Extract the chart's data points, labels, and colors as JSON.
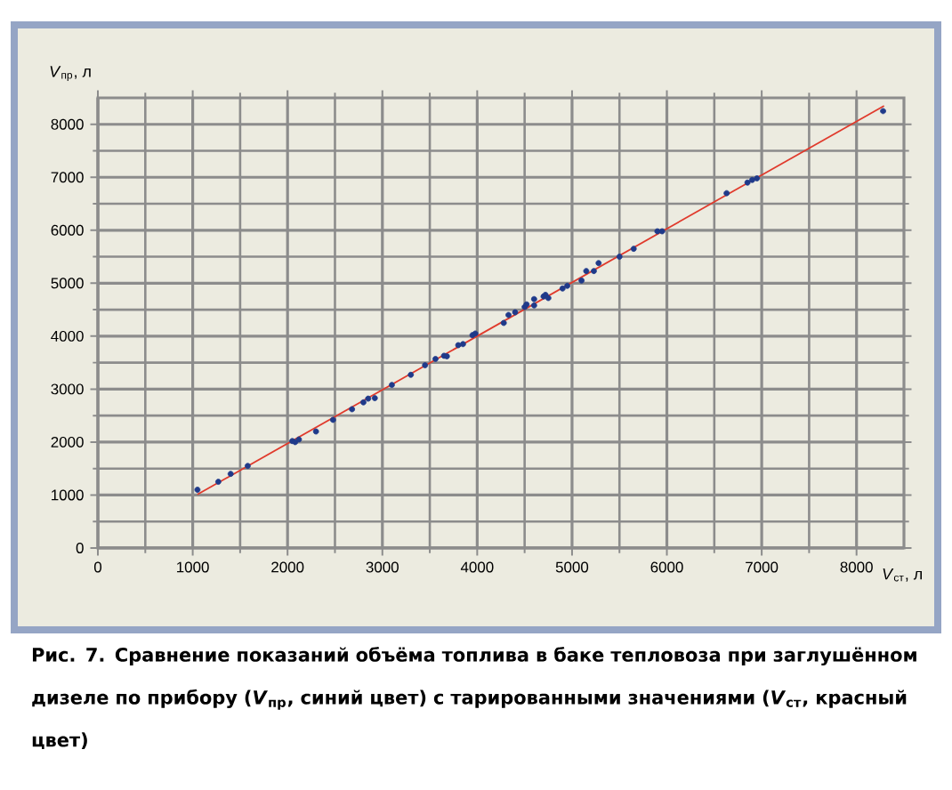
{
  "chart_data": {
    "type": "scatter",
    "xlabel": "*V*$_{ст}$, л",
    "ylabel": "*V*$_{пр}$, л",
    "xlim": [
      0,
      8500
    ],
    "ylim": [
      0,
      8500
    ],
    "xticks": [
      0,
      1000,
      2000,
      3000,
      4000,
      5000,
      6000,
      7000,
      8000
    ],
    "yticks": [
      0,
      1000,
      2000,
      3000,
      4000,
      5000,
      6000,
      7000,
      8000
    ],
    "grid": true,
    "series": [
      {
        "color": "#1f3a8a",
        "x": [
          1050,
          1270,
          1400,
          1580,
          2050,
          2080,
          2120,
          2300,
          2480,
          2680,
          2800,
          2850,
          2920,
          3100,
          3300,
          3450,
          3560,
          3650,
          3680,
          3800,
          3850,
          3950,
          3980,
          4280,
          4330,
          4400,
          4500,
          4520,
          4600,
          4600,
          4700,
          4720,
          4750,
          4900,
          4950,
          5100,
          5150,
          5230,
          5280,
          5500,
          5650,
          5900,
          5950,
          6630,
          6850,
          6900,
          6950,
          8280
        ],
        "values": [
          1100,
          1250,
          1400,
          1550,
          2020,
          2000,
          2050,
          2200,
          2420,
          2620,
          2750,
          2820,
          2830,
          3080,
          3270,
          3450,
          3570,
          3630,
          3620,
          3830,
          3850,
          4020,
          4050,
          4250,
          4400,
          4450,
          4550,
          4600,
          4580,
          4700,
          4750,
          4780,
          4720,
          4900,
          4950,
          5050,
          5230,
          5230,
          5380,
          5500,
          5650,
          5980,
          5980,
          6700,
          6900,
          6950,
          6980,
          8250
        ]
      },
      {
        "type": "line",
        "color": "#e03a2c",
        "x": [
          1050,
          8290
        ],
        "values": [
          1010,
          8350
        ]
      }
    ],
    "annotations": [
      "Рис. 7. Сравнение показаний объёма топлива в баке тепловоза при заглушённом дизеле по прибору (*V*$_{пр}$, синий цвет) с тарированными значениями (*V*$_{ст}$, красный цвет)"
    ]
  }
}
